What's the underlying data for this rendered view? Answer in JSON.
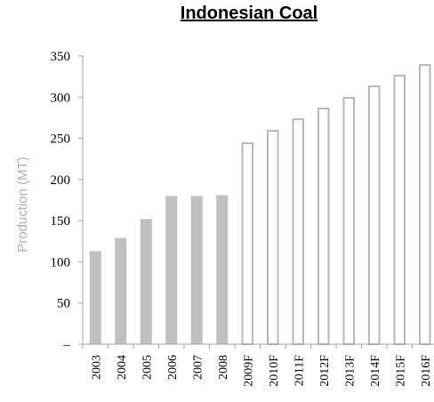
{
  "chart_data": {
    "type": "bar",
    "title": "Indonesian Coal",
    "xlabel": "",
    "ylabel": "Production (MT)",
    "ylim": [
      0,
      350
    ],
    "yticks": [
      0,
      50,
      100,
      150,
      200,
      250,
      300,
      350
    ],
    "ytick_labels": [
      "–",
      "50",
      "100",
      "150",
      "200",
      "250",
      "300",
      "350"
    ],
    "grid": false,
    "categories": [
      "2003",
      "2004",
      "2005",
      "2006",
      "2007",
      "2008",
      "2009F",
      "2010F",
      "2011F",
      "2012F",
      "2013F",
      "2014F",
      "2015F",
      "2016F"
    ],
    "series": [
      {
        "values": [
          113,
          129,
          152,
          180,
          180,
          181,
          245,
          260,
          274,
          287,
          300,
          314,
          327,
          340
        ],
        "forecast": [
          false,
          false,
          false,
          false,
          false,
          false,
          true,
          true,
          true,
          true,
          true,
          true,
          true,
          true
        ]
      }
    ],
    "colors": {
      "actual": "#c0c0c0",
      "forecast_fill": "#ffffff",
      "forecast_stroke": "#b8b8b8",
      "axis": "#a6a6a6"
    }
  }
}
